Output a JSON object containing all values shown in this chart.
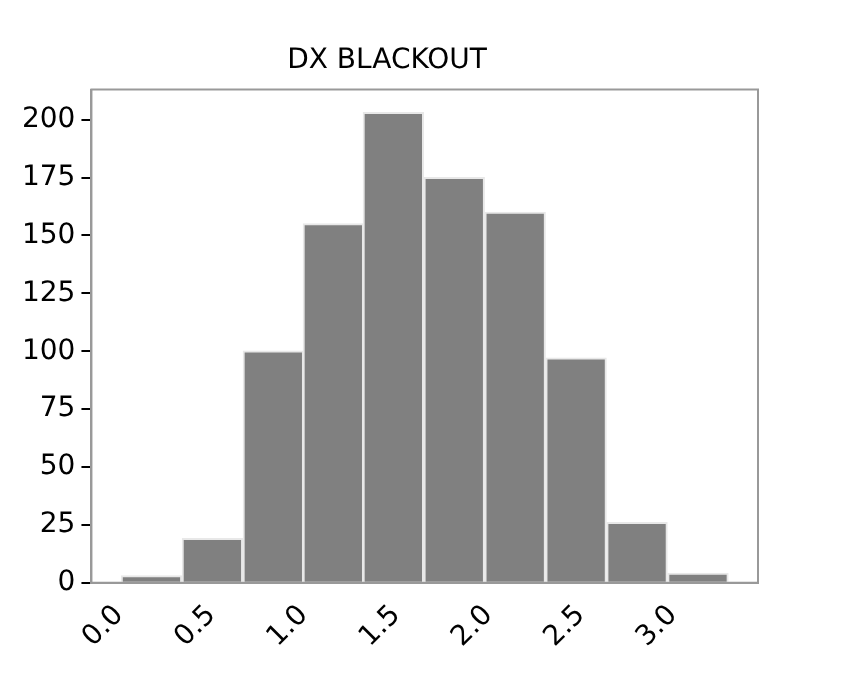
{
  "chart_data": {
    "type": "histogram",
    "title": "DX BLACKOUT",
    "bins": [
      0.01,
      0.34,
      0.67,
      1.0,
      1.32,
      1.65,
      1.98,
      2.31,
      2.64,
      2.97,
      3.3
    ],
    "values": [
      3,
      19,
      100,
      155,
      203,
      175,
      160,
      97,
      26,
      4
    ],
    "color": "#808080",
    "xlim": [
      -0.15,
      3.46
    ],
    "xticks": [
      {
        "value": 0,
        "label": "0.0"
      },
      0.5,
      {
        "value": 1,
        "label": "1.0"
      },
      1.5,
      {
        "value": 2,
        "label": "2.0"
      },
      2.5,
      {
        "value": 3,
        "label": "3.0"
      }
    ],
    "ylim": [
      0,
      213
    ],
    "yticks": [
      0,
      25,
      50,
      75,
      100,
      125,
      150,
      175,
      200
    ],
    "grid": false,
    "legend": false
  }
}
